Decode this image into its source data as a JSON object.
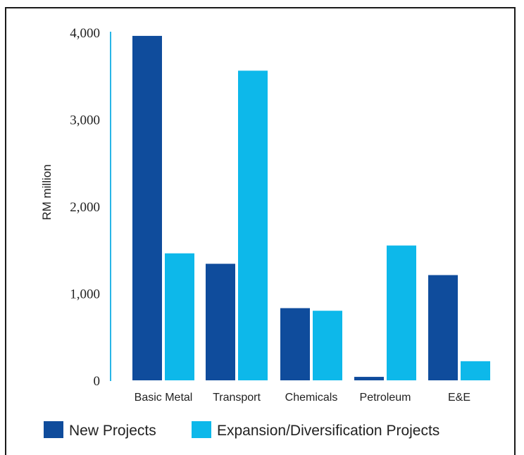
{
  "chart_data": {
    "type": "bar",
    "title": "",
    "xlabel": "",
    "ylabel": "RM million",
    "ylim": [
      0,
      4000
    ],
    "yticks": [
      "0",
      "1,000",
      "2,000",
      "3,000",
      "4,000"
    ],
    "ytick_values": [
      0,
      1000,
      2000,
      3000,
      4000
    ],
    "categories": [
      "Basic Metal",
      "Transport",
      "Chemicals",
      "Petroleum",
      "E&E"
    ],
    "series": [
      {
        "name": "New Projects",
        "values": [
          3960,
          1340,
          830,
          40,
          1210
        ]
      },
      {
        "name": "Expansion/Diversification Projects",
        "values": [
          1460,
          3560,
          800,
          1550,
          220
        ]
      }
    ],
    "colors": [
      "#0f4c9c",
      "#0db8ea"
    ],
    "axis_color": "#29b5e6",
    "grid": false,
    "legend_position": "bottom"
  }
}
